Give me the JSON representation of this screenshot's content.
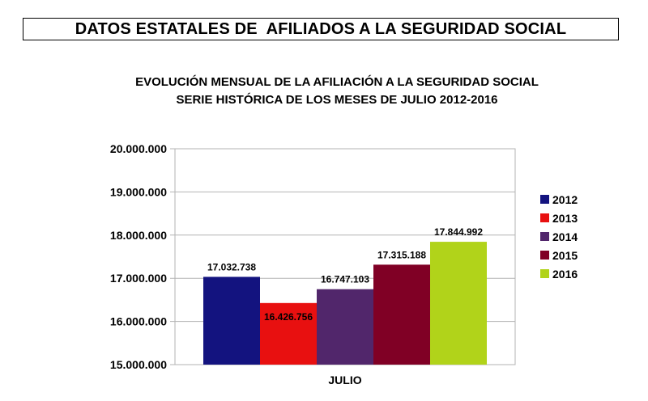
{
  "header": {
    "title": "DATOS ESTATALES DE  AFILIADOS A LA SEGURIDAD SOCIAL"
  },
  "chart_data": {
    "type": "bar",
    "title": "EVOLUCIÓN MENSUAL DE LA AFILIACIÓN A LA SEGURIDAD SOCIAL",
    "subtitle": "SERIE HISTÓRICA DE LOS MESES DE JULIO 2012-2016",
    "categories": [
      "JULIO"
    ],
    "series": [
      {
        "name": "2012",
        "values": [
          17032738
        ],
        "label": "17.032.738",
        "color": "#13137f"
      },
      {
        "name": "2013",
        "values": [
          16426756
        ],
        "label": "16.426.756",
        "color": "#e81010"
      },
      {
        "name": "2014",
        "values": [
          16747103
        ],
        "label": "16.747.103",
        "color": "#51266b"
      },
      {
        "name": "2015",
        "values": [
          17315188
        ],
        "label": "17.315.188",
        "color": "#800025"
      },
      {
        "name": "2016",
        "values": [
          17844992
        ],
        "label": "17.844.992",
        "color": "#b1d31a"
      }
    ],
    "ylim": [
      15000000,
      20000000
    ],
    "yticks": [
      15000000,
      16000000,
      17000000,
      18000000,
      19000000,
      20000000
    ],
    "ytick_labels": [
      "15.000.000",
      "16.000.000",
      "17.000.000",
      "18.000.000",
      "19.000.000",
      "20.000.000"
    ],
    "xlabel": "",
    "ylabel": "",
    "grid": true,
    "legend": "right"
  }
}
